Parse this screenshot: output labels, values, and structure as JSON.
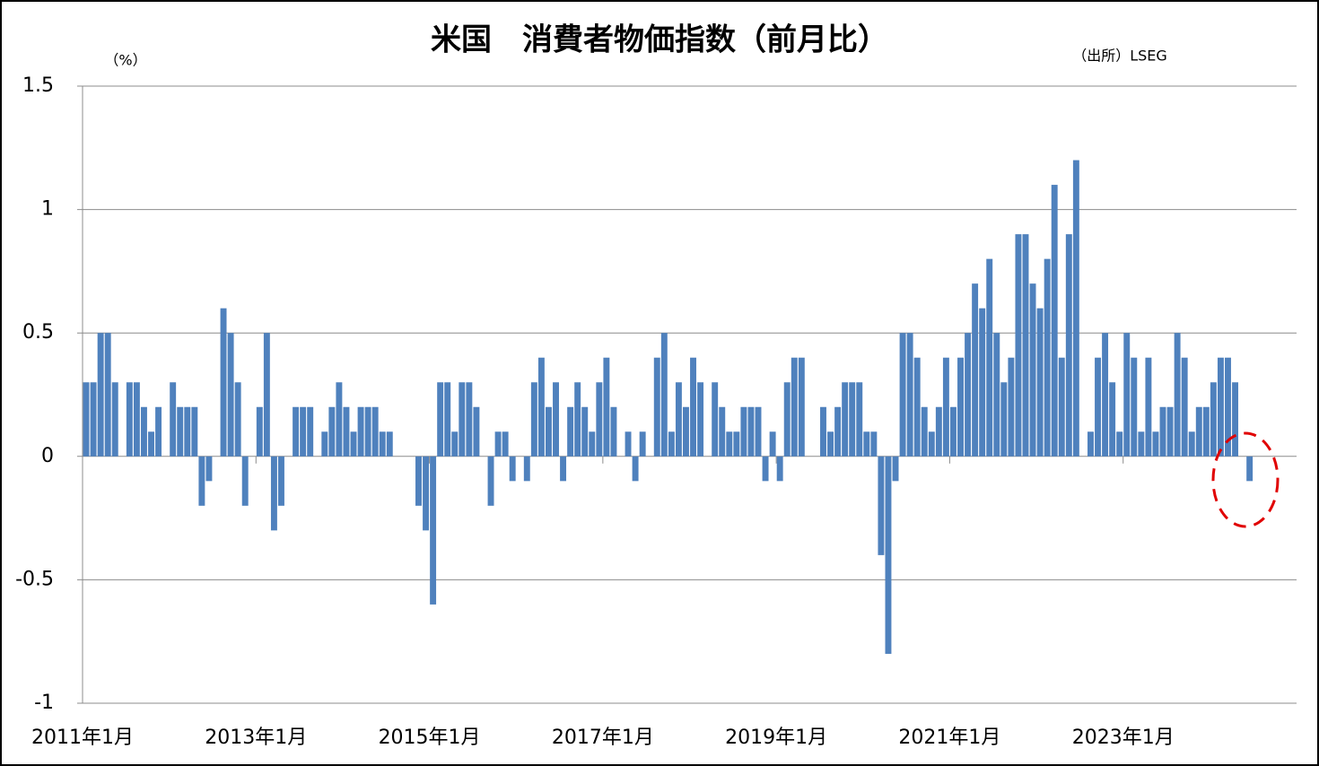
{
  "chart_data": {
    "type": "bar",
    "title": "米国　消費者物価指数（前月比）",
    "unit_label": "（%）",
    "source": "（出所）LSEG",
    "color": "#4f81bd",
    "grid": true,
    "ylim": [
      -1,
      1.5
    ],
    "yticks": [
      -1,
      -0.5,
      0,
      0.5,
      1,
      1.5
    ],
    "categories": [
      "2011年1月",
      null,
      null,
      null,
      null,
      null,
      null,
      null,
      null,
      null,
      null,
      null,
      null,
      null,
      null,
      null,
      null,
      null,
      null,
      null,
      null,
      null,
      null,
      null,
      "2013年1月",
      null,
      null,
      null,
      null,
      null,
      null,
      null,
      null,
      null,
      null,
      null,
      null,
      null,
      null,
      null,
      null,
      null,
      null,
      null,
      null,
      null,
      null,
      null,
      "2015年1月",
      null,
      null,
      null,
      null,
      null,
      null,
      null,
      null,
      null,
      null,
      null,
      null,
      null,
      null,
      null,
      null,
      null,
      null,
      null,
      null,
      null,
      null,
      null,
      "2017年1月",
      null,
      null,
      null,
      null,
      null,
      null,
      null,
      null,
      null,
      null,
      null,
      null,
      null,
      null,
      null,
      null,
      null,
      null,
      null,
      null,
      null,
      null,
      null,
      "2019年1月",
      null,
      null,
      null,
      null,
      null,
      null,
      null,
      null,
      null,
      null,
      null,
      null,
      null,
      null,
      null,
      null,
      null,
      null,
      null,
      null,
      null,
      null,
      null,
      "2021年1月",
      null,
      null,
      null,
      null,
      null,
      null,
      null,
      null,
      null,
      null,
      null,
      null,
      null,
      null,
      null,
      null,
      null,
      null,
      null,
      null,
      null,
      null,
      null,
      "2023年1月",
      null,
      null,
      null,
      null,
      null,
      null,
      null,
      null,
      null,
      null,
      null,
      null,
      null,
      null,
      null,
      null,
      null,
      null,
      null,
      null,
      null,
      null,
      null
    ],
    "values": [
      0.3,
      0.3,
      0.5,
      0.5,
      0.3,
      0,
      0.3,
      0.3,
      0.2,
      0.1,
      0.2,
      0,
      0.3,
      0.2,
      0.2,
      0.2,
      -0.2,
      -0.1,
      0,
      0.6,
      0.5,
      0.3,
      -0.2,
      0,
      0.2,
      0.5,
      -0.3,
      -0.2,
      0,
      0.2,
      0.2,
      0.2,
      0,
      0.1,
      0.2,
      0.3,
      0.2,
      0.1,
      0.2,
      0.2,
      0.2,
      0.1,
      0.1,
      0,
      0,
      0,
      -0.2,
      -0.3,
      -0.6,
      0.3,
      0.3,
      0.1,
      0.3,
      0.3,
      0.2,
      0,
      -0.2,
      0.1,
      0.1,
      -0.1,
      0,
      -0.1,
      0.3,
      0.4,
      0.2,
      0.3,
      -0.1,
      0.2,
      0.3,
      0.2,
      0.1,
      0.3,
      0.4,
      0.2,
      0,
      0.1,
      -0.1,
      0.1,
      0,
      0.4,
      0.5,
      0.1,
      0.3,
      0.2,
      0.4,
      0.3,
      0,
      0.3,
      0.2,
      0.1,
      0.1,
      0.2,
      0.2,
      0.2,
      -0.1,
      0.1,
      -0.1,
      0.3,
      0.4,
      0.4,
      0,
      0,
      0.2,
      0.1,
      0.2,
      0.3,
      0.3,
      0.3,
      0.1,
      0.1,
      -0.4,
      -0.8,
      -0.1,
      0.5,
      0.5,
      0.4,
      0.2,
      0.1,
      0.2,
      0.4,
      0.2,
      0.4,
      0.5,
      0.7,
      0.6,
      0.8,
      0.5,
      0.3,
      0.4,
      0.9,
      0.9,
      0.7,
      0.6,
      0.8,
      1.1,
      0.4,
      0.9,
      1.2,
      0,
      0.1,
      0.4,
      0.5,
      0.3,
      0.1,
      0.5,
      0.4,
      0.1,
      0.4,
      0.1,
      0.2,
      0.2,
      0.5,
      0.4,
      0.1,
      0.2,
      0.2,
      0.3,
      0.4,
      0.4,
      0.3,
      0,
      -0.1,
      null,
      null,
      null,
      null,
      null,
      null
    ]
  }
}
